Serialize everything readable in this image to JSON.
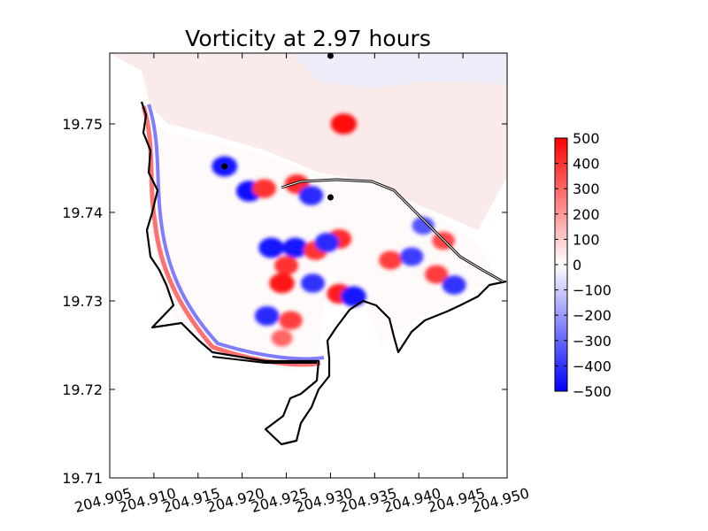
{
  "chart_data": {
    "type": "heatmap",
    "title": "Vorticity at 2.97 hours",
    "xlabel": "",
    "ylabel": "",
    "xlim": [
      204.905,
      204.95
    ],
    "ylim": [
      19.71,
      19.758
    ],
    "x_ticks": [
      204.905,
      204.91,
      204.915,
      204.92,
      204.925,
      204.93,
      204.935,
      204.94,
      204.945,
      204.95
    ],
    "x_tick_labels": [
      "204.905",
      "204.910",
      "204.915",
      "204.920",
      "204.925",
      "204.930",
      "204.935",
      "204.940",
      "204.945",
      "204.950"
    ],
    "y_ticks": [
      19.71,
      19.72,
      19.73,
      19.74,
      19.75
    ],
    "y_tick_labels": [
      "19.71",
      "19.72",
      "19.73",
      "19.74",
      "19.75"
    ],
    "grid": false,
    "colormap": "bwr",
    "colormap_colors": {
      "low": "#0000ff",
      "mid": "#ffffff",
      "high": "#ff0000"
    },
    "colorbar": {
      "range": [
        -500,
        500
      ],
      "ticks": [
        500,
        400,
        300,
        200,
        100,
        0,
        -100,
        -200,
        -300,
        -400,
        -500
      ],
      "tick_labels": [
        "500",
        "400",
        "300",
        "200",
        "100",
        "0",
        "−100",
        "−200",
        "−300",
        "−400",
        "−500"
      ],
      "placement": "right"
    },
    "markers": [
      {
        "x": 204.93,
        "y": 19.7577
      },
      {
        "x": 204.918,
        "y": 19.7452
      },
      {
        "x": 204.93,
        "y": 19.7417
      }
    ],
    "vortices": [
      {
        "x": 204.9315,
        "y": 19.75,
        "value": 480
      },
      {
        "x": 204.9208,
        "y": 19.7424,
        "value": -480
      },
      {
        "x": 204.918,
        "y": 19.7452,
        "value": -460
      },
      {
        "x": 204.9225,
        "y": 19.7427,
        "value": 400
      },
      {
        "x": 204.9262,
        "y": 19.7432,
        "value": 420
      },
      {
        "x": 204.9278,
        "y": 19.7419,
        "value": -420
      },
      {
        "x": 204.926,
        "y": 19.736,
        "value": -450
      },
      {
        "x": 204.9283,
        "y": 19.7357,
        "value": 400
      },
      {
        "x": 204.9233,
        "y": 19.736,
        "value": -460
      },
      {
        "x": 204.925,
        "y": 19.734,
        "value": 400
      },
      {
        "x": 204.931,
        "y": 19.737,
        "value": 420
      },
      {
        "x": 204.9296,
        "y": 19.7366,
        "value": -420
      },
      {
        "x": 204.9245,
        "y": 19.732,
        "value": 450
      },
      {
        "x": 204.928,
        "y": 19.732,
        "value": -400
      },
      {
        "x": 204.931,
        "y": 19.7308,
        "value": 440
      },
      {
        "x": 204.9326,
        "y": 19.7305,
        "value": -460
      },
      {
        "x": 204.9228,
        "y": 19.7283,
        "value": -420
      },
      {
        "x": 204.9255,
        "y": 19.7278,
        "value": 380
      },
      {
        "x": 204.9245,
        "y": 19.7258,
        "value": 300
      },
      {
        "x": 204.9368,
        "y": 19.7346,
        "value": 380
      },
      {
        "x": 204.9392,
        "y": 19.735,
        "value": -380
      },
      {
        "x": 204.942,
        "y": 19.733,
        "value": 380
      },
      {
        "x": 204.944,
        "y": 19.7318,
        "value": -400
      },
      {
        "x": 204.9405,
        "y": 19.7385,
        "value": -340
      },
      {
        "x": 204.9428,
        "y": 19.7368,
        "value": 360
      }
    ]
  }
}
